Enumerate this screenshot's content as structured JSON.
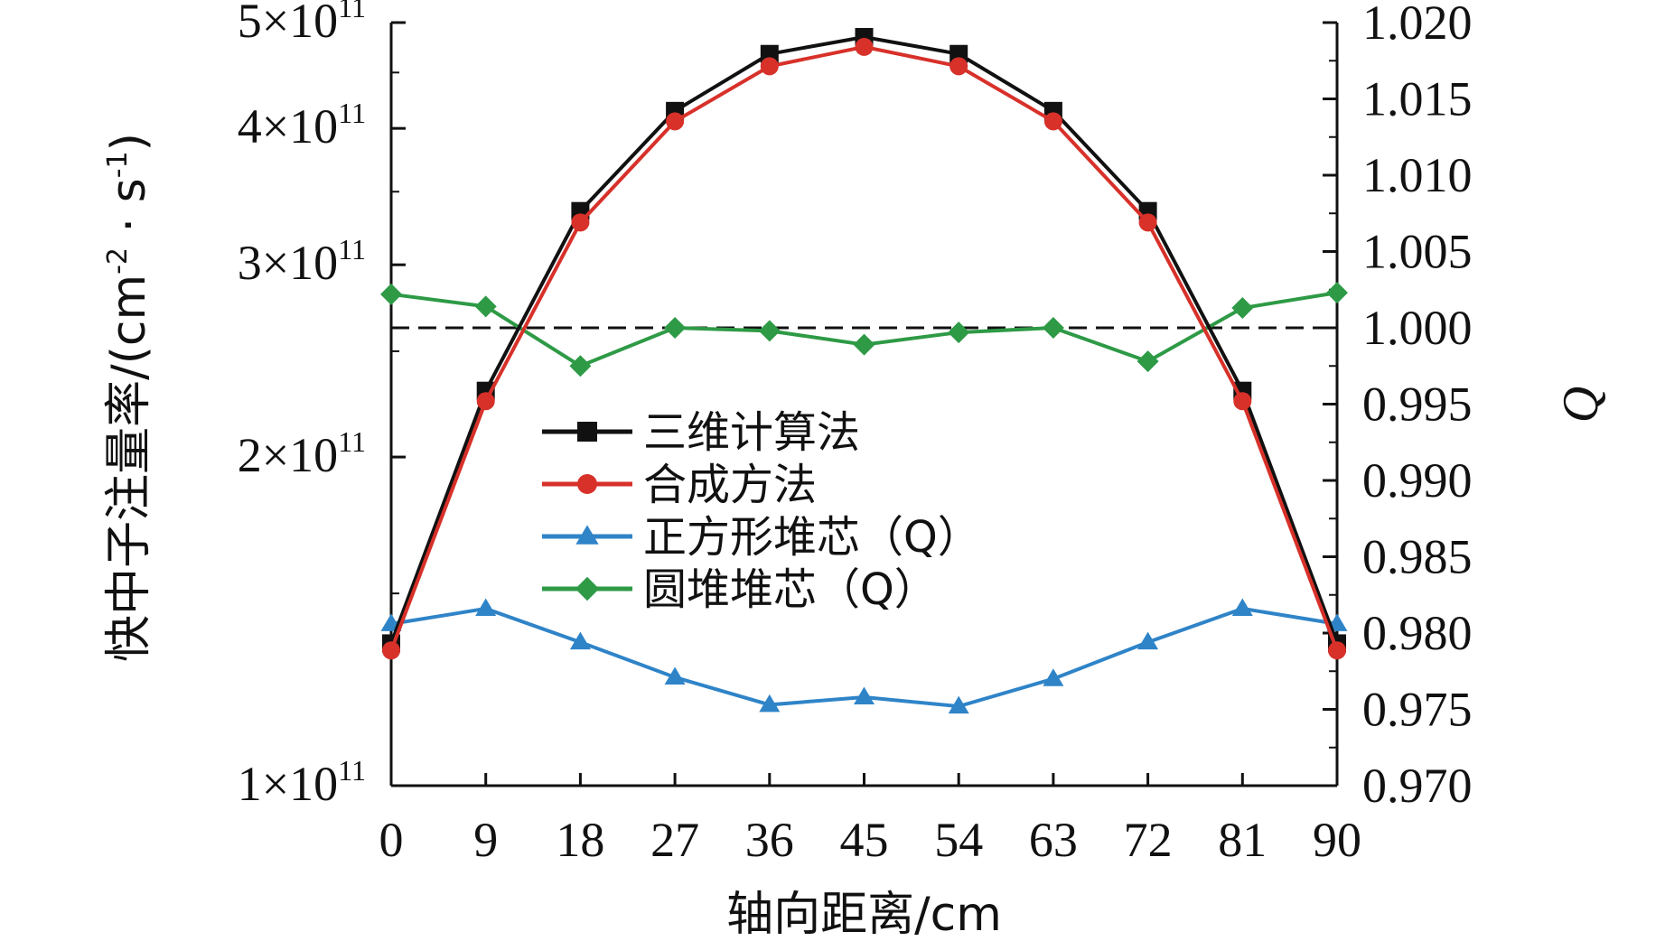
{
  "chart_data": {
    "type": "line",
    "xlabel": "轴向距离/cm",
    "ylabel_left": "快中子注量率/(cm",
    "ylabel_left_sup1": "-2",
    "ylabel_left_mid": " · s",
    "ylabel_left_sup2": "-1",
    "ylabel_left_end": ")",
    "ylabel_right": "Q",
    "x": [
      0,
      9,
      18,
      27,
      36,
      45,
      54,
      63,
      72,
      81,
      90
    ],
    "x_ticks": [
      "0",
      "9",
      "18",
      "27",
      "36",
      "45",
      "54",
      "63",
      "72",
      "81",
      "90"
    ],
    "xlim": [
      0,
      90
    ],
    "y_left_scale": "log",
    "y_left_lim": [
      100000000000.0,
      500000000000.0
    ],
    "y_left_ticks": [
      {
        "value": 100000000000.0,
        "mant": "1",
        "exp": "11"
      },
      {
        "value": 200000000000.0,
        "mant": "2",
        "exp": "11"
      },
      {
        "value": 300000000000.0,
        "mant": "3",
        "exp": "11"
      },
      {
        "value": 400000000000.0,
        "mant": "4",
        "exp": "11"
      },
      {
        "value": 500000000000.0,
        "mant": "5",
        "exp": "11"
      }
    ],
    "y_right_lim": [
      0.97,
      1.02
    ],
    "y_right_ticks": [
      "0.970",
      "0.975",
      "0.980",
      "0.985",
      "0.990",
      "0.995",
      "1.000",
      "1.005",
      "1.010",
      "1.015",
      "1.020"
    ],
    "reference_line": {
      "axis": "right",
      "value": 1.0,
      "style": "dashed"
    },
    "series": [
      {
        "name": "三维计算法",
        "axis": "left",
        "marker": "square",
        "color": "#111111",
        "values": [
          135000000000.0,
          230000000000.0,
          336000000000.0,
          415000000000.0,
          468000000000.0,
          485000000000.0,
          468000000000.0,
          415000000000.0,
          336000000000.0,
          230000000000.0,
          135000000000.0
        ]
      },
      {
        "name": "合成方法",
        "axis": "left",
        "marker": "circle",
        "color": "#d7312a",
        "values": [
          133000000000.0,
          225000000000.0,
          328000000000.0,
          406000000000.0,
          456000000000.0,
          475000000000.0,
          456000000000.0,
          406000000000.0,
          328000000000.0,
          225000000000.0,
          133000000000.0
        ]
      },
      {
        "name": "正方形堆芯（Q）",
        "axis": "right",
        "marker": "triangle",
        "color": "#2f84c8",
        "values": [
          0.9806,
          0.9816,
          0.9794,
          0.9771,
          0.9753,
          0.9758,
          0.9752,
          0.977,
          0.9794,
          0.9816,
          0.9806
        ]
      },
      {
        "name": "圆堆堆芯（Q）",
        "axis": "right",
        "marker": "diamond",
        "color": "#2e9a46",
        "values": [
          1.0022,
          1.0014,
          0.9975,
          1.0,
          0.9998,
          0.9989,
          0.9997,
          1.0,
          0.9978,
          1.0013,
          1.0023
        ]
      }
    ],
    "legend_position": "center-left",
    "grid": false
  }
}
